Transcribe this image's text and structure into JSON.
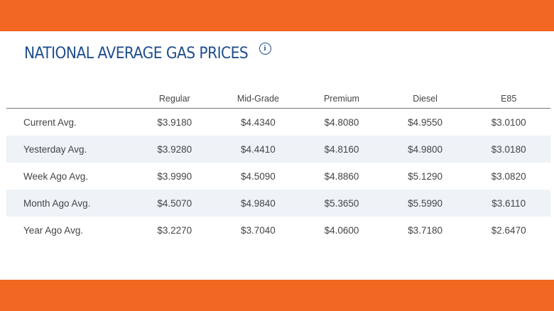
{
  "title": "NATIONAL AVERAGE GAS PRICES",
  "info_icon": "info-icon",
  "colors": {
    "accent_band": "#f26722",
    "title": "#1f4e8c",
    "shaded_row": "#eef3f8"
  },
  "table": {
    "columns": [
      "",
      "Regular",
      "Mid-Grade",
      "Premium",
      "Diesel",
      "E85"
    ],
    "rows": [
      {
        "label": "Current Avg.",
        "values": [
          "$3.9180",
          "$4.4340",
          "$4.8080",
          "$4.9550",
          "$3.0100"
        ]
      },
      {
        "label": "Yesterday Avg.",
        "values": [
          "$3.9280",
          "$4.4410",
          "$4.8160",
          "$4.9800",
          "$3.0180"
        ]
      },
      {
        "label": "Week Ago Avg.",
        "values": [
          "$3.9990",
          "$4.5090",
          "$4.8860",
          "$5.1290",
          "$3.0820"
        ]
      },
      {
        "label": "Month Ago Avg.",
        "values": [
          "$4.5070",
          "$4.9840",
          "$5.3650",
          "$5.5990",
          "$3.6110"
        ]
      },
      {
        "label": "Year Ago Avg.",
        "values": [
          "$3.2270",
          "$3.7040",
          "$4.0600",
          "$3.7180",
          "$2.6470"
        ]
      }
    ]
  }
}
